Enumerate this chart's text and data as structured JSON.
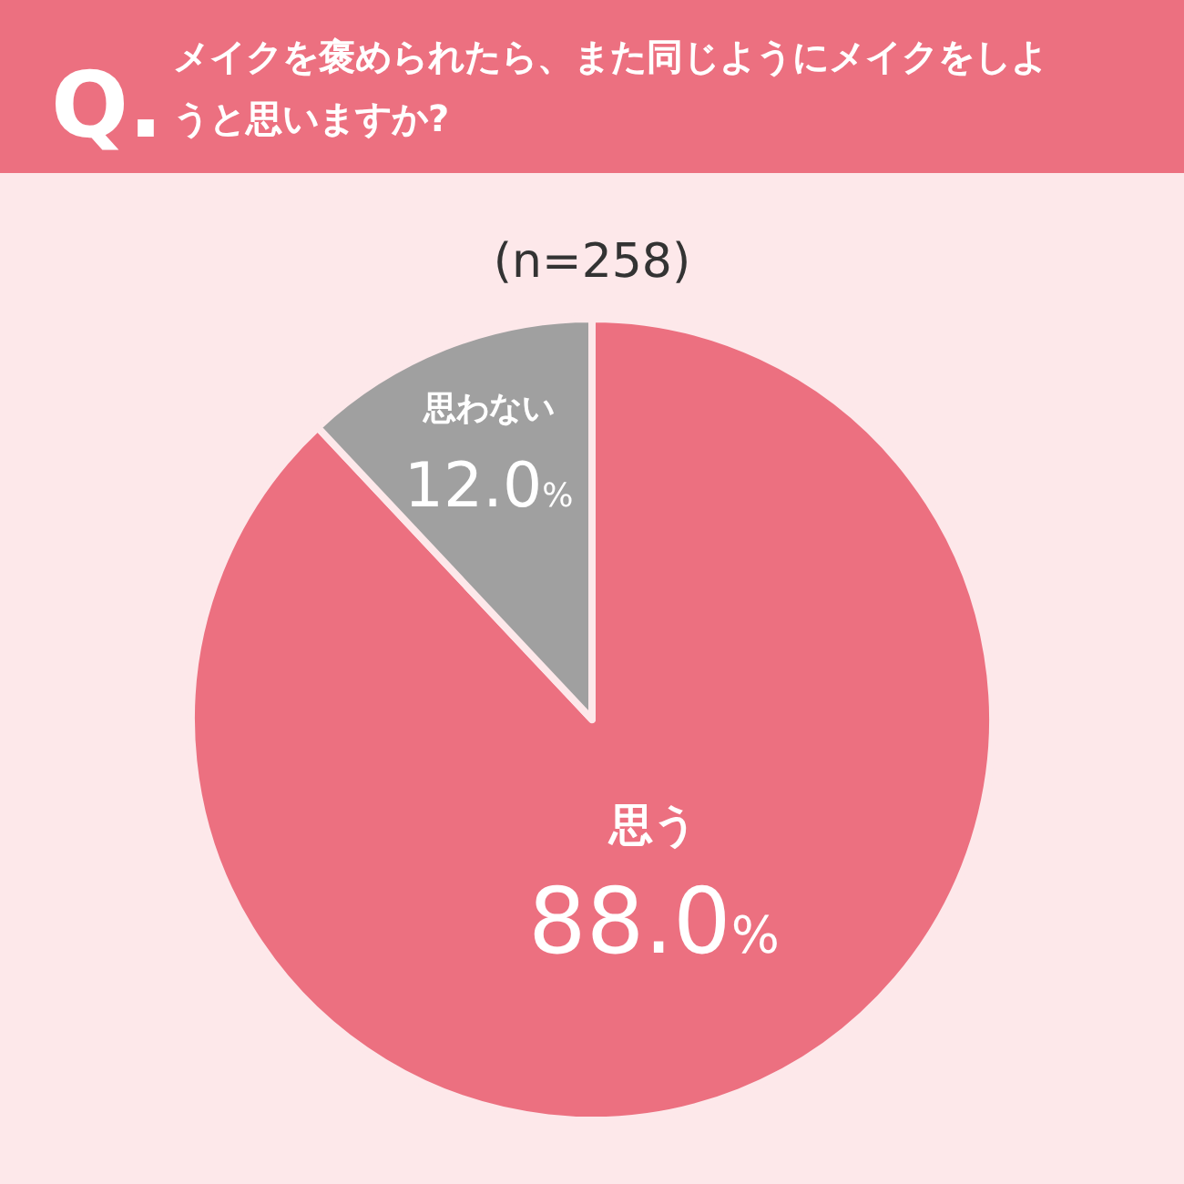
{
  "chart_data": {
    "type": "pie",
    "title": "メイクを褒められたら、また同じようにメイクをしようと思いますか?",
    "subtitle": "(n=258)",
    "annotations": [
      "Q."
    ],
    "categories": [
      "思う",
      "思わない"
    ],
    "values": [
      88.0,
      12.0
    ],
    "colors": [
      "#ec7080",
      "#a0a0a0"
    ],
    "value_labels": [
      "88.0%",
      "12.0%"
    ]
  }
}
